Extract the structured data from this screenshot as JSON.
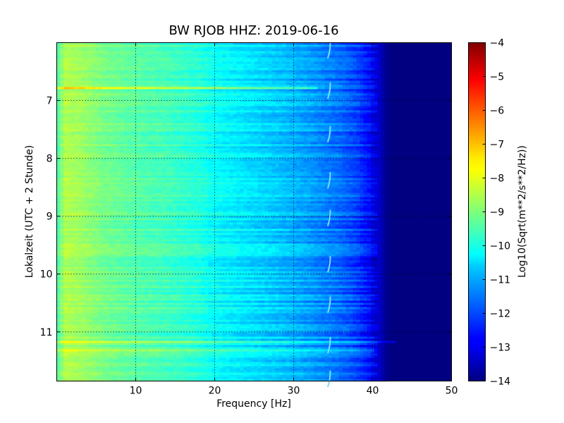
{
  "chart_data": {
    "type": "heatmap",
    "title": "BW RJOB HHZ: 2019-06-16",
    "xlabel": "Frequency [Hz]",
    "ylabel": "Lokalzeit (UTC + 2 Stunde)",
    "xlim": [
      0,
      50
    ],
    "ylim": [
      11.85,
      6.0
    ],
    "x_ticks": [
      10,
      20,
      30,
      40,
      50
    ],
    "y_ticks": [
      7,
      8,
      9,
      10,
      11
    ],
    "grid": true,
    "colormap": "jet",
    "colorbar": {
      "label": "Log10(Sqrt(m**2/s**2/Hz))",
      "range": [
        -14,
        -4
      ],
      "ticks": [
        -4,
        -5,
        -6,
        -7,
        -8,
        -9,
        -10,
        -11,
        -12,
        -13,
        -14
      ]
    },
    "psd_profile": {
      "frequency_hz": [
        0,
        1,
        3,
        6,
        10,
        14,
        18,
        20,
        24,
        28,
        32,
        36,
        38,
        40,
        42,
        50
      ],
      "log10_value": [
        -9.6,
        -8.5,
        -8.7,
        -9.1,
        -9.4,
        -9.6,
        -9.9,
        -10.2,
        -10.5,
        -10.8,
        -11.2,
        -11.7,
        -12.1,
        -12.8,
        -14,
        -14
      ]
    },
    "strong_bands": [
      {
        "time": 6.78,
        "freq_max_hz": 33,
        "offset_log10": 1.2
      },
      {
        "time": 11.18,
        "freq_max_hz": 43,
        "offset_log10": 0.8
      },
      {
        "time": 11.32,
        "freq_max_hz": 40,
        "offset_log10": 0.55
      }
    ],
    "feature_curves_freq_hz": 34.5,
    "feature_curves_times": [
      6.1,
      6.8,
      7.55,
      8.35,
      9.0,
      9.8,
      10.5,
      11.2,
      11.78
    ]
  }
}
